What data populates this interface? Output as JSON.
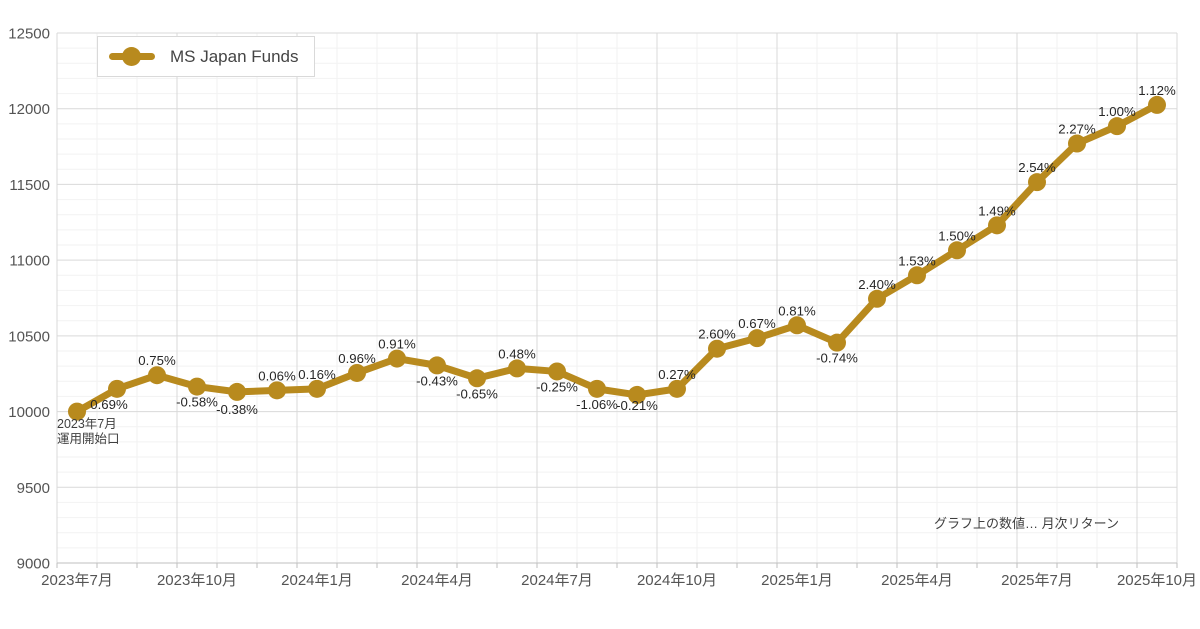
{
  "legend": {
    "label": "MS Japan Funds"
  },
  "annotation": {
    "line1": "2023年7月",
    "line2": "運用開始口"
  },
  "note": {
    "text": "グラフ上の数値… 月次リターン"
  },
  "colors": {
    "line": "#B88A1E",
    "data_label_text": "#262626",
    "axis_text": "#545454",
    "grid_major": "#D9D9D9",
    "grid_minor": "#F2F2F2",
    "axis_line": "#BFBFBF",
    "legend_border": "#D9D9D9",
    "legend_text": "#444444",
    "annotation_text": "#3F3F3F",
    "background": "#FFFFFF"
  },
  "chart_data": {
    "type": "line",
    "title": "",
    "legend_position": "top-left",
    "n_points": 28,
    "series": [
      {
        "name": "MS Japan Funds",
        "values": [
          10000,
          10150,
          10240,
          10165,
          10130,
          10140,
          10150,
          10255,
          10350,
          10305,
          10220,
          10285,
          10265,
          10150,
          10110,
          10150,
          10415,
          10485,
          10570,
          10455,
          10745,
          10900,
          11065,
          11230,
          11515,
          11770,
          11885,
          12025
        ]
      }
    ],
    "point_labels": [
      null,
      "0.69%",
      "0.75%",
      "-0.58%",
      "-0.38%",
      "0.06%",
      "0.16%",
      "0.96%",
      "0.91%",
      "-0.43%",
      "-0.65%",
      "0.48%",
      "-0.25%",
      "-1.06%",
      "-0.21%",
      "0.27%",
      "2.60%",
      "0.67%",
      "0.81%",
      "-0.74%",
      "2.40%",
      "1.53%",
      "1.50%",
      "1.49%",
      "2.54%",
      "2.27%",
      "1.00%",
      "1.12%"
    ],
    "label_positions": [
      null,
      "below",
      "above",
      "below",
      "below",
      "above",
      "above",
      "above",
      "above",
      "below",
      "below",
      "above",
      "below",
      "below",
      "below",
      "above",
      "above",
      "above",
      "above",
      "below",
      "above",
      "above",
      "above",
      "above",
      "above",
      "above",
      "above",
      "above"
    ],
    "label_dx": {
      "1": -8
    },
    "label_dy": {
      "4": 2,
      "14": -5
    },
    "x_tick_labels": [
      "2023年7月",
      "2023年10月",
      "2024年1月",
      "2024年4月",
      "2024年7月",
      "2024年10月",
      "2025年1月",
      "2025年4月",
      "2025年7月",
      "2025年10月"
    ],
    "x_tick_month_indices": [
      0,
      3,
      6,
      9,
      12,
      15,
      18,
      21,
      24,
      27
    ],
    "y_ticks": [
      9000,
      9500,
      10000,
      10500,
      11000,
      11500,
      12000,
      12500
    ],
    "ylim": [
      9000,
      12500
    ],
    "grid": {
      "y_major_step": 500,
      "y_minor_step": 100,
      "x_major_every_months": 3,
      "x_minor_every_months": 1
    },
    "footnote": "グラフ上の数値… 月次リターン",
    "start_annotation": "2023年7月 運用開始口"
  }
}
